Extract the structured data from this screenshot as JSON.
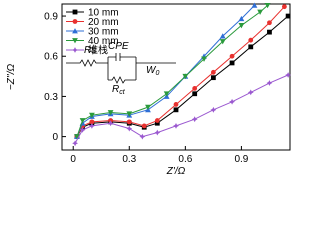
{
  "chart_data": {
    "type": "line",
    "x_label": "Z'/Ω",
    "y_label": "−Z''/Ω",
    "xlim": [
      -0.06,
      1.16
    ],
    "ylim": [
      -0.1,
      0.99
    ],
    "xticks": [
      0,
      0.3,
      0.6,
      0.9
    ],
    "yticks": [
      0,
      0.3,
      0.6,
      0.9
    ],
    "legend": "upper-left",
    "series": [
      {
        "name": "10 mm",
        "color": "#000000",
        "marker": "square",
        "x": [
          0.02,
          0.05,
          0.1,
          0.2,
          0.3,
          0.38,
          0.45,
          0.55,
          0.65,
          0.75,
          0.85,
          0.95,
          1.05,
          1.15
        ],
        "values": [
          0.0,
          0.07,
          0.1,
          0.11,
          0.1,
          0.07,
          0.1,
          0.2,
          0.32,
          0.44,
          0.55,
          0.67,
          0.78,
          0.9
        ]
      },
      {
        "name": "20 mm",
        "color": "#e8312f",
        "marker": "circle",
        "x": [
          0.02,
          0.05,
          0.1,
          0.2,
          0.3,
          0.38,
          0.45,
          0.55,
          0.65,
          0.75,
          0.85,
          0.95,
          1.05,
          1.13
        ],
        "values": [
          0.0,
          0.08,
          0.11,
          0.12,
          0.11,
          0.08,
          0.12,
          0.24,
          0.36,
          0.48,
          0.6,
          0.72,
          0.85,
          0.97
        ]
      },
      {
        "name": "30 mm",
        "color": "#2f6fd6",
        "marker": "triangle-up",
        "x": [
          0.02,
          0.05,
          0.1,
          0.2,
          0.3,
          0.4,
          0.5,
          0.6,
          0.7,
          0.8,
          0.9,
          0.97
        ],
        "values": [
          0.0,
          0.1,
          0.15,
          0.17,
          0.16,
          0.2,
          0.3,
          0.45,
          0.6,
          0.75,
          0.88,
          0.98
        ]
      },
      {
        "name": "40 mm",
        "color": "#2a9a3c",
        "marker": "triangle-down",
        "x": [
          0.02,
          0.05,
          0.1,
          0.2,
          0.3,
          0.4,
          0.5,
          0.6,
          0.7,
          0.8,
          0.9,
          1.0,
          1.04
        ],
        "values": [
          0.0,
          0.12,
          0.16,
          0.18,
          0.17,
          0.22,
          0.32,
          0.45,
          0.58,
          0.71,
          0.83,
          0.93,
          0.98
        ]
      },
      {
        "name": "堆栈",
        "color": "#9b59d0",
        "marker": "star",
        "x": [
          0.01,
          0.05,
          0.1,
          0.2,
          0.3,
          0.37,
          0.45,
          0.55,
          0.65,
          0.75,
          0.85,
          0.95,
          1.05,
          1.15
        ],
        "values": [
          -0.05,
          0.05,
          0.08,
          0.1,
          0.06,
          0.0,
          0.03,
          0.08,
          0.13,
          0.2,
          0.26,
          0.33,
          0.4,
          0.46
        ]
      }
    ],
    "circuit": [
      {
        "text": "Rs"
      },
      {
        "text": "CPE"
      },
      {
        "text": "R",
        "sub": "ct"
      },
      {
        "text": "W",
        "sub": "0"
      }
    ]
  }
}
